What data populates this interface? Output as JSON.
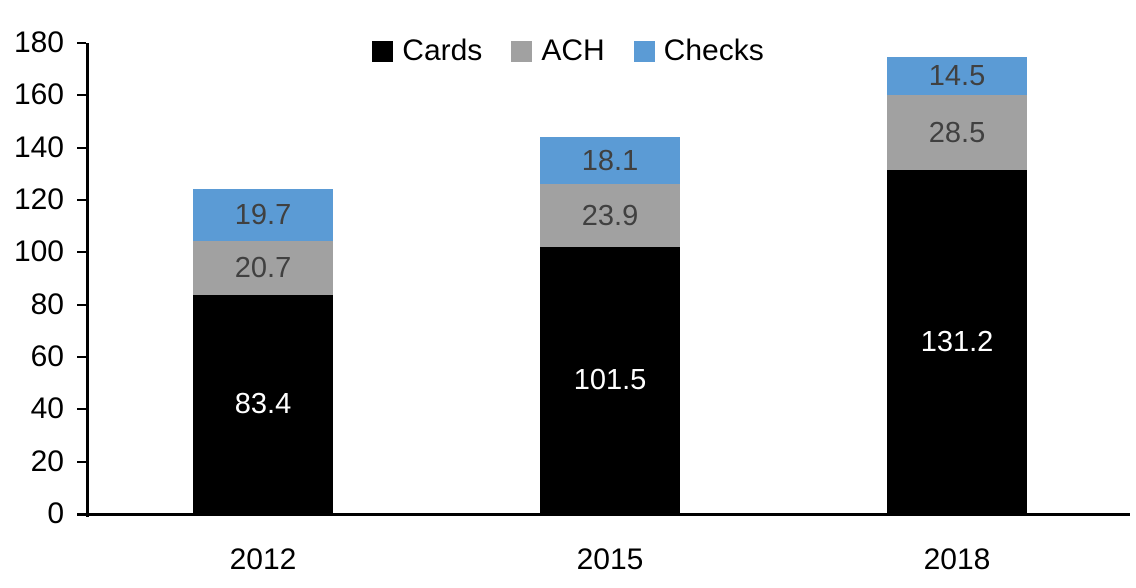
{
  "chart_data": {
    "type": "bar",
    "stacked": true,
    "title": "",
    "xlabel": "",
    "ylabel": "",
    "categories": [
      "2012",
      "2015",
      "2018"
    ],
    "series": [
      {
        "name": "Cards",
        "color": "#000000",
        "label_color": "#ffffff",
        "values": [
          83.4,
          101.5,
          131.2
        ]
      },
      {
        "name": "ACH",
        "color": "#a1a1a1",
        "label_color": "#404040",
        "values": [
          20.7,
          23.9,
          28.5
        ]
      },
      {
        "name": "Checks",
        "color": "#5b9bd5",
        "label_color": "#404040",
        "values": [
          19.7,
          18.1,
          14.5
        ]
      }
    ],
    "totals": [
      123.8,
      143.5,
      174.2
    ],
    "ylim": [
      0,
      180
    ],
    "y_ticks": [
      "0",
      "20",
      "40",
      "60",
      "80",
      "100",
      "120",
      "140",
      "160",
      "180"
    ],
    "grid": false,
    "legend_position": "top-center",
    "axis_color": "#000000",
    "tick_label_color": "#000000"
  }
}
